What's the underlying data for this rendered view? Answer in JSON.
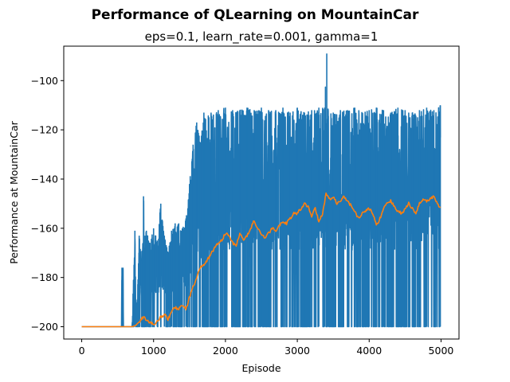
{
  "chart_data": {
    "type": "line",
    "suptitle": "Performance of QLearning on MountainCar",
    "title": "eps=0.1, learn_rate=0.001, gamma=1",
    "xlabel": "Episode",
    "ylabel": "Performance at MountainCar",
    "xlim": [
      -250,
      5250
    ],
    "ylim": [
      -205,
      -86
    ],
    "xticks": [
      0,
      1000,
      2000,
      3000,
      4000,
      5000
    ],
    "xtick_labels": [
      "0",
      "1000",
      "2000",
      "3000",
      "4000",
      "5000"
    ],
    "yticks": [
      -200,
      -180,
      -160,
      -140,
      -120,
      -100
    ],
    "ytick_labels": [
      "−200",
      "−180",
      "−160",
      "−140",
      "−120",
      "−100"
    ],
    "grid": false,
    "legend": false,
    "series": [
      {
        "color": "#1f77b4",
        "points_per_episode": true,
        "envelope": {
          "x": [
            0,
            550,
            560,
            575,
            580,
            600,
            700,
            740,
            760,
            800,
            830,
            860,
            880,
            900,
            950,
            1000,
            1050,
            1100,
            1150,
            1200,
            1250,
            1300,
            1350,
            1400,
            1450,
            1500,
            1550,
            1600,
            1650,
            1700,
            1800,
            1900,
            2000,
            2100,
            2200,
            2300,
            2400,
            2500,
            2600,
            2700,
            2800,
            2900,
            3000,
            3100,
            3200,
            3300,
            3380,
            3410,
            3430,
            3500,
            3600,
            3700,
            3800,
            3900,
            4000,
            4100,
            4200,
            4300,
            4400,
            4500,
            4600,
            4700,
            4800,
            4900,
            4990
          ],
          "upper": [
            -200,
            -200,
            -176,
            -176,
            -200,
            -200,
            -200,
            -161,
            -200,
            -163,
            -173,
            -147,
            -163,
            -161,
            -166,
            -160,
            -165,
            -150,
            -163,
            -170,
            -161,
            -158,
            -158,
            -160,
            -156,
            -142,
            -126,
            -117,
            -125,
            -113,
            -113,
            -112,
            -111,
            -112,
            -112,
            -111,
            -112,
            -111,
            -112,
            -112,
            -111,
            -113,
            -111,
            -113,
            -112,
            -111,
            -111,
            -89,
            -112,
            -113,
            -112,
            -112,
            -111,
            -113,
            -112,
            -111,
            -112,
            -113,
            -111,
            -112,
            -113,
            -112,
            -111,
            -112,
            -110
          ],
          "lower": [
            -200,
            -200,
            -200,
            -200,
            -200,
            -200,
            -200,
            -200,
            -200,
            -200,
            -200,
            -200,
            -200,
            -200,
            -200,
            -200,
            -200,
            -200,
            -200,
            -200,
            -200,
            -200,
            -200,
            -200,
            -200,
            -200,
            -200,
            -200,
            -200,
            -200,
            -200,
            -200,
            -200,
            -200,
            -200,
            -200,
            -200,
            -200,
            -200,
            -200,
            -200,
            -200,
            -200,
            -200,
            -200,
            -200,
            -200,
            -200,
            -200,
            -200,
            -200,
            -200,
            -200,
            -200,
            -200,
            -200,
            -200,
            -200,
            -200,
            -200,
            -200,
            -200,
            -200,
            -200,
            -200
          ]
        }
      },
      {
        "color": "#ff7f0e",
        "x": [
          0,
          200,
          400,
          600,
          700,
          750,
          800,
          830,
          860,
          900,
          950,
          1000,
          1050,
          1100,
          1150,
          1200,
          1250,
          1300,
          1350,
          1400,
          1450,
          1500,
          1550,
          1600,
          1650,
          1700,
          1750,
          1800,
          1850,
          1900,
          1950,
          2000,
          2050,
          2100,
          2150,
          2200,
          2250,
          2300,
          2350,
          2400,
          2450,
          2500,
          2550,
          2600,
          2650,
          2700,
          2750,
          2800,
          2850,
          2900,
          2950,
          3000,
          3050,
          3100,
          3150,
          3200,
          3250,
          3300,
          3350,
          3400,
          3450,
          3500,
          3550,
          3600,
          3650,
          3700,
          3750,
          3800,
          3850,
          3900,
          3950,
          4000,
          4050,
          4100,
          4150,
          4200,
          4250,
          4300,
          4350,
          4400,
          4450,
          4500,
          4550,
          4600,
          4650,
          4700,
          4750,
          4800,
          4850,
          4900,
          4950,
          4990
        ],
        "values": [
          -200,
          -200,
          -200,
          -200,
          -200,
          -199.5,
          -198,
          -197,
          -196,
          -197,
          -198.5,
          -199,
          -198,
          -196,
          -195,
          -197,
          -194,
          -192,
          -193,
          -191,
          -193,
          -188,
          -184,
          -180,
          -176,
          -175,
          -173,
          -170,
          -168,
          -166,
          -165,
          -162,
          -163,
          -166,
          -167,
          -162,
          -165,
          -163,
          -160,
          -157,
          -160,
          -163,
          -164,
          -162,
          -160,
          -161,
          -159,
          -157,
          -158,
          -156,
          -154,
          -154,
          -152,
          -150,
          -151,
          -155,
          -152,
          -157,
          -154,
          -146,
          -148,
          -147,
          -150,
          -149,
          -147,
          -149,
          -151,
          -153,
          -156,
          -154,
          -153,
          -152,
          -154,
          -159,
          -156,
          -152,
          -150,
          -149,
          -151,
          -153,
          -154,
          -152,
          -150,
          -152,
          -154,
          -150,
          -148,
          -149,
          -148,
          -147,
          -150,
          -152
        ]
      }
    ]
  }
}
